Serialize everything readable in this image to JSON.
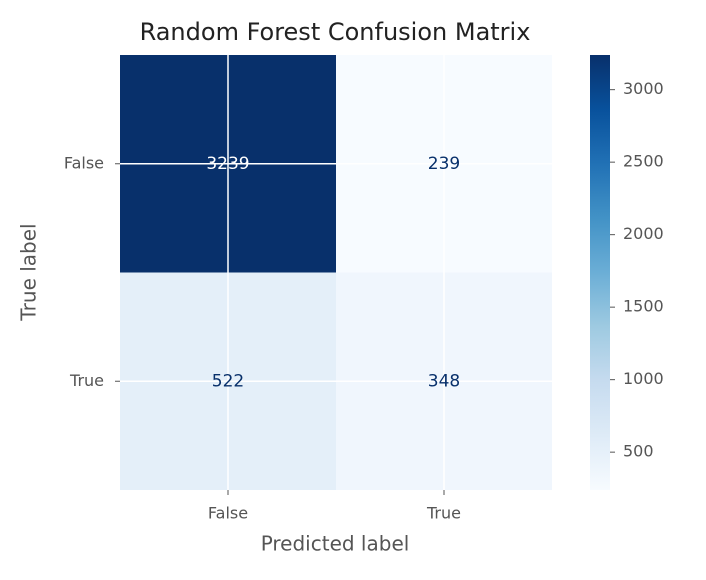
{
  "chart_data": {
    "type": "heatmap",
    "title": "Random Forest Confusion Matrix",
    "xlabel": "Predicted label",
    "ylabel": "True label",
    "x_categories": [
      "False",
      "True"
    ],
    "y_categories": [
      "False",
      "True"
    ],
    "values": [
      [
        3239,
        239
      ],
      [
        522,
        348
      ]
    ],
    "colormap": [
      "#f7fbff",
      "#deebf7",
      "#c6dbef",
      "#9ecae1",
      "#6baed6",
      "#4292c6",
      "#2171b5",
      "#08519c",
      "#08306b"
    ],
    "clim": [
      239,
      3239
    ],
    "cticks": [
      500,
      1000,
      1500,
      2000,
      2500,
      3000
    ],
    "grid": true
  }
}
